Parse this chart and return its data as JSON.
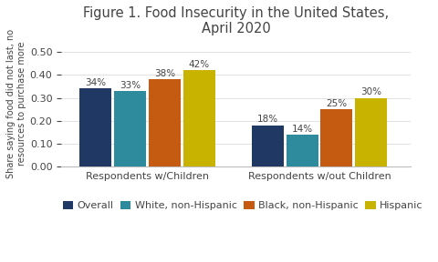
{
  "title": "Figure 1. Food Insecurity in the United States,\nApril 2020",
  "ylabel": "Share saying food did not last, no\nresources to purchase more",
  "groups": [
    "Respondents w/Children",
    "Respondents w/out Children"
  ],
  "series": [
    "Overall",
    "White, non-Hispanic",
    "Black, non-Hispanic",
    "Hispanic"
  ],
  "values": [
    [
      0.34,
      0.33,
      0.38,
      0.42
    ],
    [
      0.18,
      0.14,
      0.25,
      0.3
    ]
  ],
  "labels": [
    [
      "34%",
      "33%",
      "38%",
      "42%"
    ],
    [
      "18%",
      "14%",
      "25%",
      "30%"
    ]
  ],
  "colors": [
    "#1f3864",
    "#2e8b9e",
    "#c55a11",
    "#c8b400"
  ],
  "ylim": [
    0,
    0.55
  ],
  "yticks": [
    0.0,
    0.1,
    0.2,
    0.3,
    0.4,
    0.5
  ],
  "background_color": "#ffffff",
  "bar_width": 0.13,
  "title_fontsize": 10.5,
  "label_fontsize": 7.5,
  "tick_fontsize": 8,
  "legend_fontsize": 8,
  "ylabel_fontsize": 7.0
}
